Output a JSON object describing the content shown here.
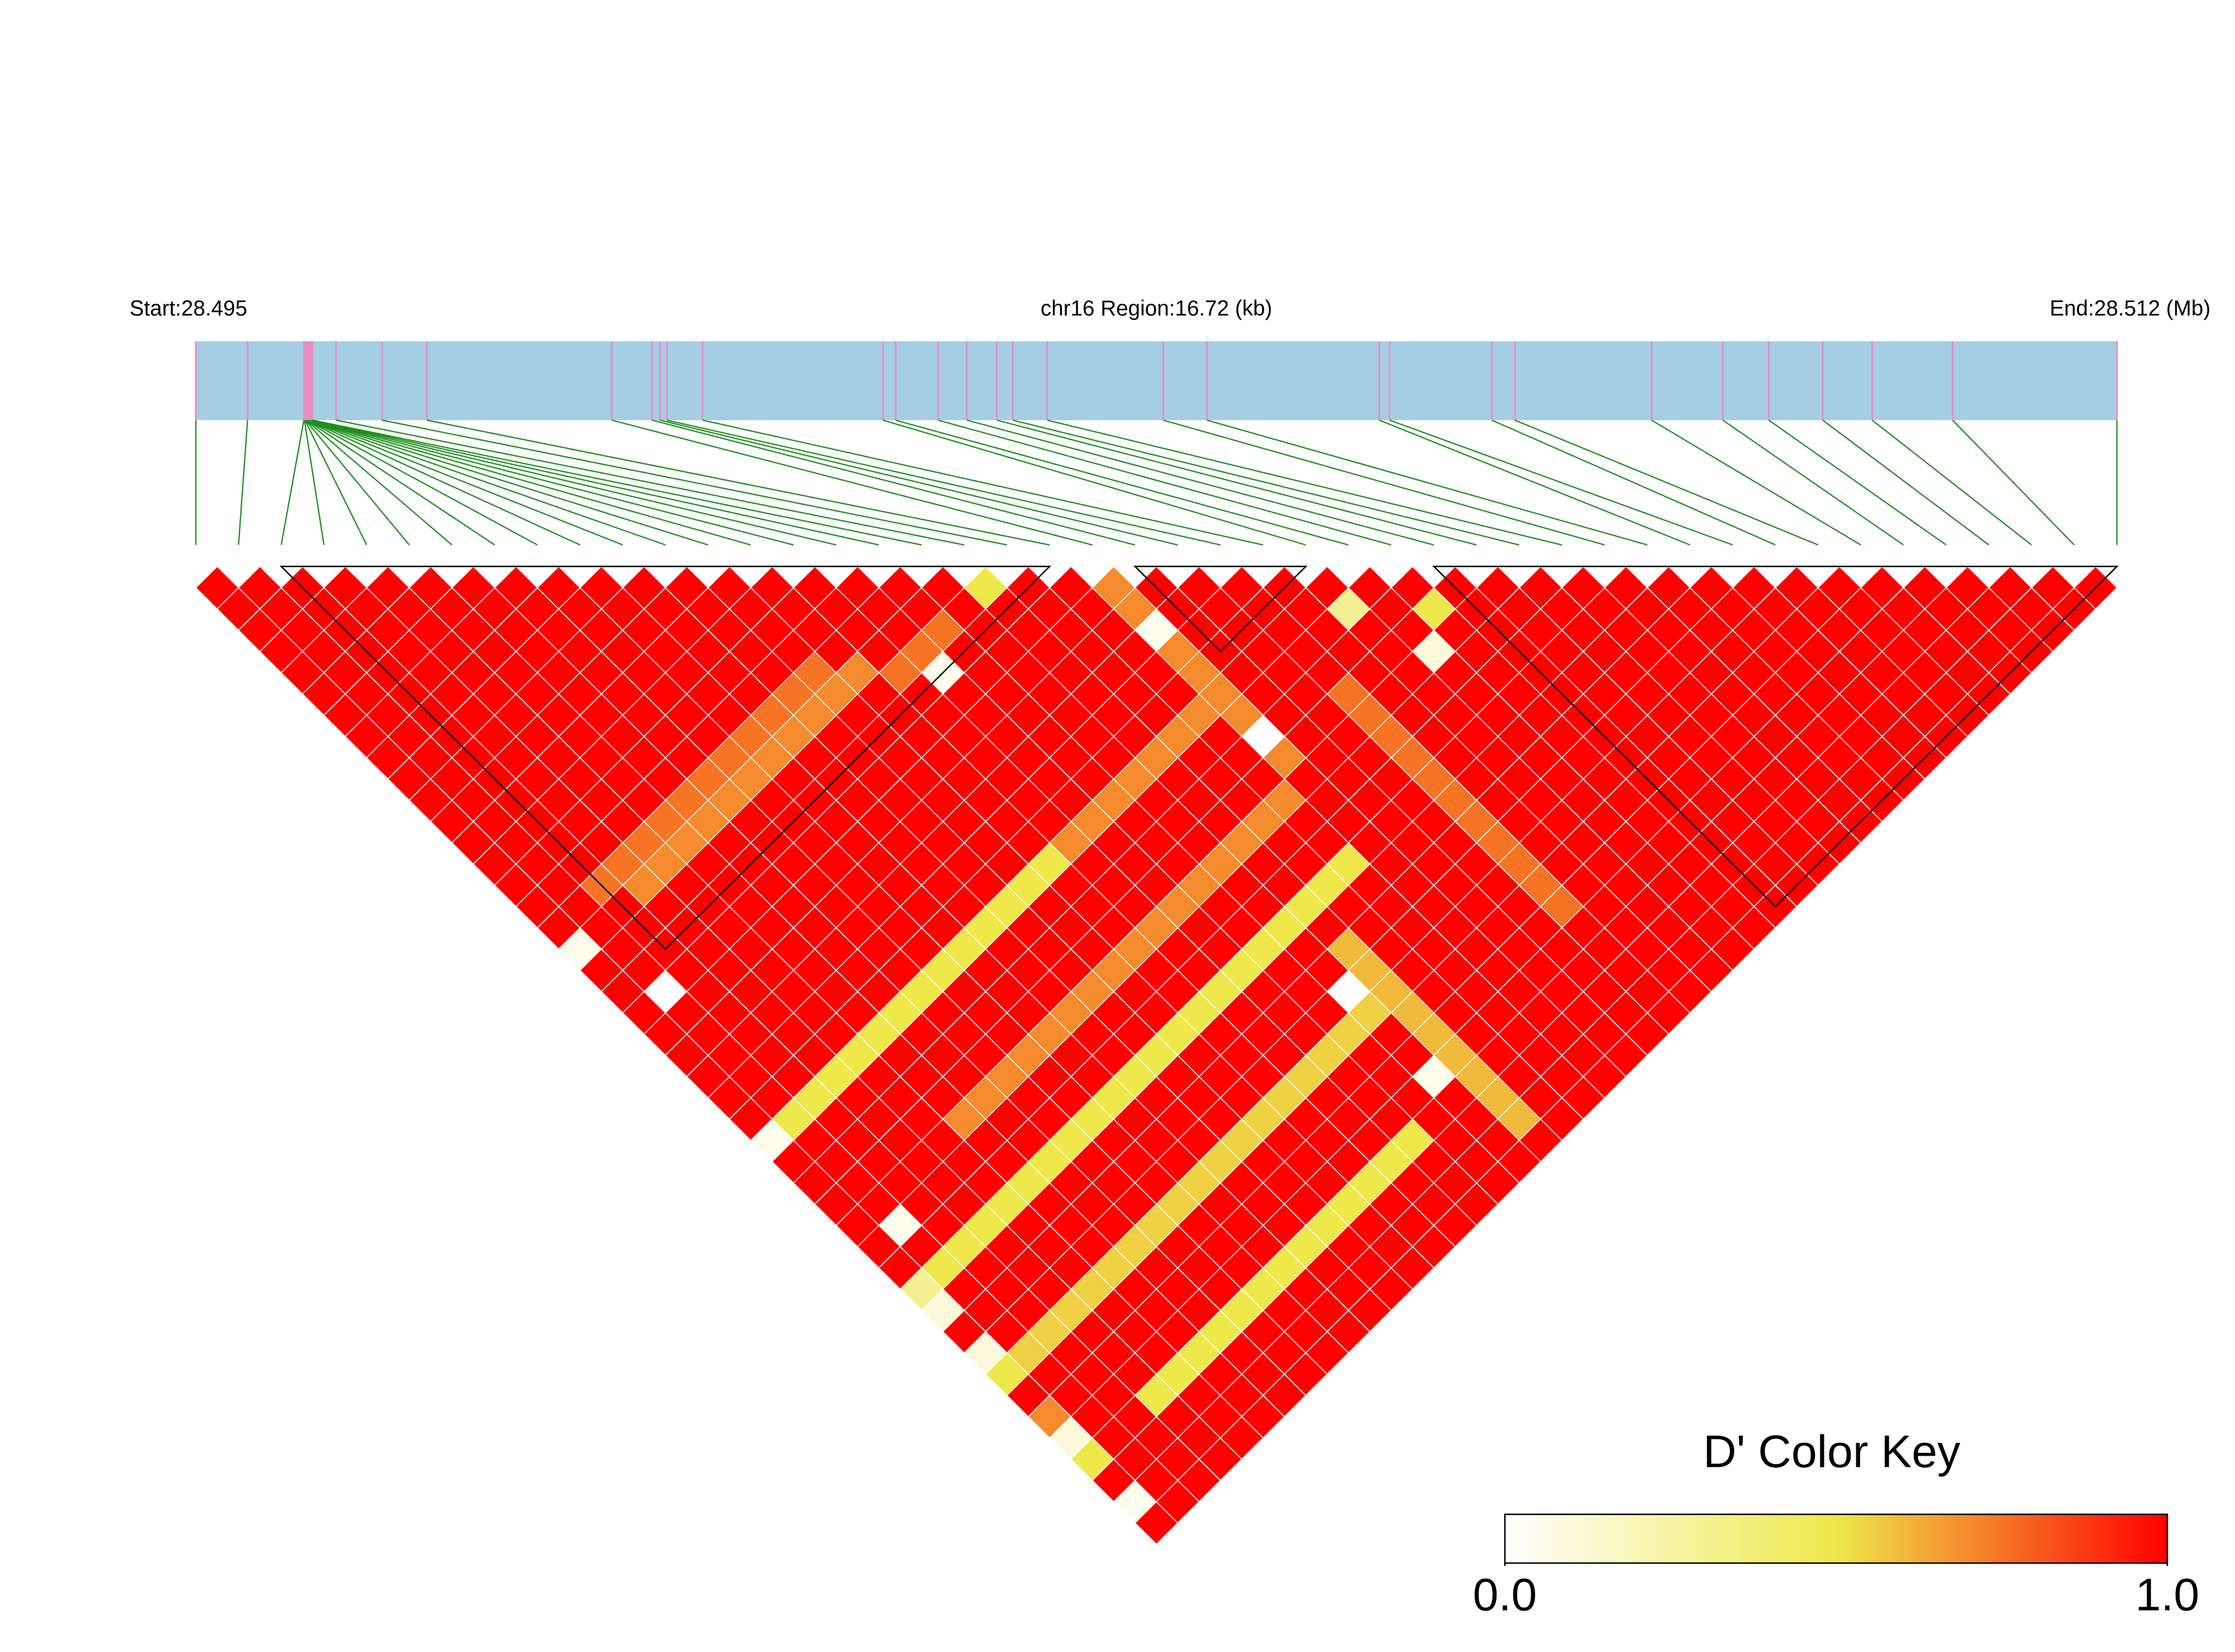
{
  "chart_data": {
    "type": "ld_heatmap",
    "start_label": "Start:28.495",
    "region_label": "chr16 Region:16.72 (kb)",
    "end_label": "End:28.512 (Mb)",
    "xlim": [
      0,
      16.72
    ],
    "snp_positions_kb": [
      0,
      0.45,
      0.94,
      0.945,
      0.95,
      0.955,
      0.96,
      0.965,
      0.97,
      0.975,
      0.98,
      0.985,
      0.99,
      0.995,
      1.0,
      1.005,
      1.01,
      1.015,
      1.22,
      1.62,
      2.01,
      3.62,
      3.97,
      4.04,
      4.1,
      4.41,
      5.98,
      6.09,
      6.46,
      6.71,
      6.97,
      7.11,
      7.41,
      8.42,
      8.8,
      10.3,
      10.39,
      11.28,
      11.48,
      12.67,
      13.29,
      13.69,
      14.16,
      14.59,
      15.29,
      16.72
    ],
    "dprime": [
      [
        1,
        1,
        1,
        1,
        1,
        1,
        1,
        1,
        1,
        1,
        1,
        1,
        1,
        1,
        1,
        1,
        1,
        0.05,
        1,
        1,
        1,
        1,
        1,
        1,
        1,
        1,
        0.05,
        1,
        1,
        1,
        1,
        1,
        1,
        0.3,
        0.1,
        1,
        0.1,
        0.5,
        1,
        0.7,
        0.1,
        0.5,
        1,
        0.05,
        1
      ],
      [
        1,
        1,
        1,
        1,
        1,
        1,
        1,
        1,
        1,
        1,
        1,
        1,
        1,
        1,
        1,
        1,
        1,
        1,
        1,
        0,
        1,
        1,
        1,
        1,
        1,
        0.5,
        1,
        1,
        1,
        1,
        0.05,
        1,
        0.5,
        1,
        1,
        1,
        0.55,
        1,
        1,
        1,
        1,
        1,
        1,
        1
      ],
      [
        1,
        1,
        1,
        1,
        1,
        1,
        1,
        1,
        1,
        1,
        1,
        1,
        1,
        1,
        0.75,
        1,
        1,
        1,
        1,
        1,
        1,
        1,
        1,
        1,
        0.5,
        1,
        1,
        1,
        1,
        1,
        1,
        0.5,
        1,
        1,
        1,
        0.55,
        1,
        1,
        1,
        1,
        1,
        1,
        1
      ],
      [
        1,
        1,
        1,
        1,
        1,
        1,
        1,
        1,
        1,
        1,
        1,
        1,
        1,
        0.75,
        0.7,
        1,
        1,
        1,
        1,
        1,
        1,
        1,
        1,
        0.5,
        1,
        1,
        1,
        1,
        1,
        1,
        0.5,
        1,
        1,
        1,
        0.55,
        1,
        1,
        1,
        0.5,
        1,
        1,
        1
      ],
      [
        1,
        1,
        1,
        1,
        1,
        1,
        1,
        1,
        1,
        1,
        1,
        1,
        0.75,
        0.7,
        1,
        1,
        1,
        1,
        1,
        1,
        1,
        1,
        0.5,
        1,
        1,
        1,
        1,
        1,
        1,
        0.5,
        1,
        1,
        1,
        0.55,
        1,
        1,
        1,
        0.5,
        1,
        1,
        1
      ],
      [
        1,
        1,
        1,
        1,
        1,
        1,
        1,
        1,
        1,
        1,
        1,
        0.75,
        0.7,
        1,
        1,
        1,
        1,
        1,
        1,
        1,
        1,
        0.5,
        1,
        1,
        1,
        0.7,
        1,
        1,
        0.5,
        1,
        1,
        1,
        0.55,
        1,
        1,
        1,
        0.5,
        1,
        1,
        1
      ],
      [
        1,
        1,
        1,
        1,
        1,
        1,
        1,
        1,
        1,
        1,
        0.75,
        0.7,
        1,
        1,
        1,
        1,
        1,
        1,
        1,
        1,
        0.5,
        1,
        1,
        1,
        0.7,
        1,
        1,
        0.5,
        1,
        1,
        1,
        0.55,
        1,
        1,
        1,
        0.5,
        1,
        1,
        1
      ],
      [
        1,
        1,
        1,
        1,
        1,
        1,
        1,
        1,
        1,
        0.75,
        0.7,
        1,
        1,
        1,
        1,
        1,
        1,
        1,
        1,
        0.5,
        1,
        1,
        1,
        0.7,
        1,
        1,
        0.5,
        1,
        1,
        1,
        0.55,
        1,
        1,
        1,
        0.5,
        1,
        1,
        1
      ],
      [
        1,
        1,
        1,
        1,
        1,
        1,
        1,
        1,
        0.75,
        0.7,
        1,
        1,
        1,
        1,
        1,
        1,
        1,
        1,
        0.5,
        1,
        1,
        1,
        0.7,
        1,
        1,
        0.5,
        1,
        1,
        1,
        0.55,
        1,
        1,
        1,
        0.5,
        1,
        1,
        1
      ],
      [
        1,
        1,
        1,
        1,
        1,
        1,
        1,
        0.75,
        0.7,
        1,
        1,
        1,
        1,
        1,
        1,
        1,
        1,
        0.5,
        1,
        1,
        1,
        0.7,
        1,
        1,
        0.5,
        1,
        1,
        1,
        0.55,
        1,
        1,
        1,
        0.5,
        1,
        1,
        1
      ],
      [
        1,
        1,
        1,
        1,
        1,
        1,
        0.75,
        0.7,
        1,
        1,
        1,
        1,
        1,
        1,
        1,
        1,
        0.5,
        1,
        1,
        1,
        0.7,
        1,
        1,
        0.5,
        1,
        1,
        1,
        0.55,
        1,
        1,
        1,
        0.5,
        1,
        1,
        1
      ],
      [
        1,
        1,
        1,
        1,
        1,
        0.75,
        0.7,
        1,
        1,
        1,
        1,
        1,
        1,
        1,
        1,
        0.5,
        1,
        1,
        1,
        0.7,
        1,
        1,
        0.5,
        1,
        1,
        1,
        0.55,
        1,
        1,
        1,
        0.5,
        1,
        1,
        1
      ],
      [
        1,
        1,
        1,
        1,
        0.75,
        0.7,
        1,
        1,
        1,
        1,
        1,
        1,
        1,
        1,
        0.5,
        1,
        1,
        1,
        0.7,
        1,
        1,
        0.5,
        1,
        1,
        1,
        0.55,
        1,
        1,
        1,
        0.5,
        1,
        1,
        1
      ],
      [
        1,
        1,
        1,
        1,
        0.7,
        1,
        1,
        1,
        1,
        1,
        1,
        1,
        1,
        0.5,
        1,
        1,
        1,
        0.7,
        1,
        1,
        0.5,
        1,
        1,
        1,
        0.55,
        1,
        1,
        1,
        0.5,
        1,
        1,
        1
      ],
      [
        1,
        1,
        1,
        1,
        0.75,
        1,
        1,
        1,
        1,
        1,
        1,
        1,
        0.7,
        1,
        1,
        1,
        0.7,
        1,
        1,
        0.5,
        1,
        1,
        1,
        0.55,
        1,
        1,
        1,
        0.5,
        1,
        1,
        1
      ],
      [
        1,
        1,
        1,
        0.75,
        0.05,
        1,
        1,
        1,
        1,
        1,
        1,
        0.7,
        1,
        1,
        1,
        0.7,
        1,
        1,
        0.5,
        1,
        1,
        1,
        0.55,
        1,
        1,
        1,
        0.5,
        1,
        1,
        1
      ],
      [
        1,
        1,
        0.75,
        1,
        1,
        1,
        1,
        1,
        1,
        1,
        0.7,
        1,
        1,
        1,
        0.7,
        1,
        1,
        0.5,
        1,
        1,
        1,
        0.55,
        1,
        1,
        1,
        1,
        1,
        1,
        1
      ],
      [
        1,
        1,
        1,
        1,
        1,
        1,
        1,
        1,
        1,
        0.7,
        1,
        1,
        1,
        0.7,
        1,
        1,
        0.5,
        1,
        1,
        0,
        0.55,
        1,
        1,
        0.05,
        1,
        1,
        1,
        1
      ],
      [
        0.5,
        1,
        1,
        1,
        1,
        1,
        1,
        1,
        0.7,
        1,
        1,
        1,
        0.7,
        1,
        1,
        0.5,
        1,
        0.6,
        0.6,
        0.6,
        0.6,
        0.6,
        0.6,
        0.6,
        0.6,
        0.6,
        1
      ],
      [
        1,
        1,
        1,
        1,
        1,
        1,
        1,
        0.7,
        1,
        1,
        1,
        0.7,
        1,
        1,
        0.5,
        1,
        1,
        1,
        1,
        1,
        1,
        1,
        1,
        1,
        1,
        1
      ],
      [
        1,
        1,
        1,
        1,
        1,
        1,
        0.7,
        1,
        1,
        1,
        0.7,
        1,
        1,
        0.5,
        1,
        1,
        1,
        1,
        1,
        1,
        1,
        1,
        1,
        1,
        1
      ],
      [
        0.7,
        0.7,
        0.05,
        0.7,
        0.7,
        0.7,
        0.7,
        0,
        0.7,
        1,
        1,
        1,
        1,
        1,
        1,
        1,
        1,
        1,
        1,
        1,
        1,
        1,
        1,
        1
      ],
      [
        1,
        1,
        1,
        1,
        1,
        1,
        1,
        1,
        1,
        1,
        1,
        1,
        1,
        1,
        1,
        1,
        1,
        1,
        1,
        1,
        1,
        1,
        1
      ],
      [
        1,
        1,
        1,
        1,
        1,
        1,
        1,
        1,
        1,
        1,
        1,
        1,
        1,
        1,
        1,
        1,
        1,
        1,
        1,
        1,
        1,
        1
      ],
      [
        1,
        1,
        1,
        1,
        1,
        0.75,
        0.75,
        0.75,
        0.75,
        0.75,
        0.75,
        0.75,
        0.75,
        0.75,
        0.75,
        0.75,
        1,
        1,
        1,
        1,
        1
      ],
      [
        1,
        1,
        1,
        1,
        1,
        1,
        1,
        1,
        1,
        1,
        1,
        1,
        1,
        1,
        1,
        1,
        1,
        1,
        1,
        1
      ],
      [
        1,
        0.3,
        1,
        1,
        1,
        1,
        1,
        1,
        1,
        1,
        1,
        1,
        1,
        1,
        1,
        1,
        1,
        1,
        1
      ],
      [
        1,
        1,
        1,
        0.1,
        1,
        1,
        1,
        1,
        1,
        1,
        1,
        1,
        1,
        1,
        1,
        1,
        1,
        1
      ],
      [
        1,
        0.5,
        1,
        1,
        1,
        1,
        1,
        1,
        1,
        1,
        1,
        1,
        1,
        1,
        1,
        1,
        1
      ],
      [
        1,
        1,
        1,
        1,
        1,
        1,
        1,
        1,
        1,
        1,
        1,
        1,
        1,
        1,
        1,
        1
      ],
      [
        1,
        1,
        1,
        1,
        1,
        1,
        1,
        1,
        1,
        1,
        1,
        1,
        1,
        1,
        1
      ],
      [
        1,
        1,
        1,
        1,
        1,
        1,
        1,
        1,
        1,
        1,
        1,
        1,
        1,
        1
      ],
      [
        1,
        1,
        1,
        1,
        1,
        1,
        1,
        1,
        1,
        1,
        1,
        1,
        1
      ],
      [
        1,
        1,
        1,
        1,
        1,
        1,
        1,
        1,
        1,
        1,
        1,
        1
      ],
      [
        1,
        1,
        1,
        1,
        1,
        1,
        1,
        1,
        1,
        1,
        1
      ],
      [
        1,
        1,
        1,
        1,
        1,
        1,
        1,
        1,
        1,
        1
      ],
      [
        1,
        1,
        1,
        1,
        1,
        1,
        1,
        1,
        1
      ],
      [
        1,
        1,
        1,
        1,
        1,
        1,
        1,
        1
      ],
      [
        1,
        1,
        1,
        1,
        1,
        1,
        1
      ],
      [
        1,
        1,
        1,
        1,
        1,
        1
      ],
      [
        1,
        1,
        1,
        1,
        1
      ],
      [
        1,
        1,
        1,
        1
      ],
      [
        1,
        1,
        1
      ],
      [
        1,
        1
      ],
      [
        1
      ]
    ],
    "blocks": [
      [
        2,
        20
      ],
      [
        22,
        26
      ],
      [
        29,
        45
      ]
    ],
    "bar_color": "#a6cee3",
    "snp_line_color": "#e58fc6",
    "connector_color": "#1f8f1f",
    "colorbar": {
      "title": "D' Color Key",
      "colors": [
        "#ffffff",
        "#eee84a",
        "#ff0000"
      ],
      "lim": [
        0,
        1
      ],
      "ticks": [
        {
          "value": 0,
          "label": "0.0"
        },
        {
          "value": 1,
          "label": "1.0"
        }
      ]
    }
  }
}
